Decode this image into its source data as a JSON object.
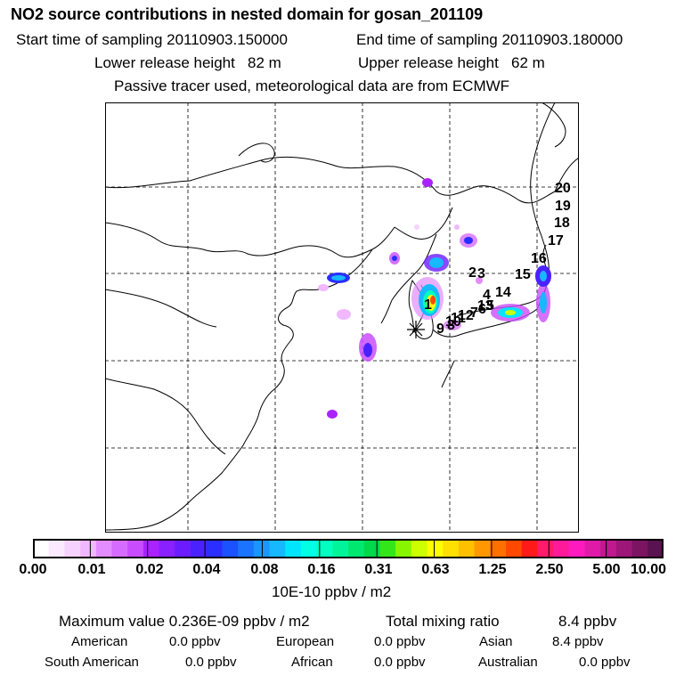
{
  "header": {
    "title": "NO2 source contributions in nested domain for gosan_201109",
    "start_label": "Start time of sampling 20110903.150000",
    "end_label": "End time of sampling 20110903.180000",
    "lower_label": "Lower release height   82 m",
    "upper_label": "Upper release height   62 m",
    "tracer_label": "Passive tracer used, meteorological data are from ECMWF"
  },
  "colors": {
    "scale": [
      "#ffffff",
      "#fbe9ff",
      "#f6d3ff",
      "#f0b8ff",
      "#e38cff",
      "#d66cff",
      "#c94dff",
      "#aa22ff",
      "#8820ff",
      "#6a1cff",
      "#4a22ff",
      "#2a2eff",
      "#1a52ff",
      "#1a74ff",
      "#1a96ff",
      "#16b8ff",
      "#00e5ff",
      "#00ffe5",
      "#00ffc0",
      "#00f59a",
      "#00e870",
      "#00d94a",
      "#33e61a",
      "#88f500",
      "#ccff00",
      "#ffff00",
      "#ffe000",
      "#ffc000",
      "#ff9800",
      "#ff7000",
      "#ff4800",
      "#ff1a1a",
      "#ff1a6a",
      "#ff1a9a",
      "#ff1ac0",
      "#e01aa8",
      "#c0188e",
      "#9e1678",
      "#7c1462",
      "#5a1250"
    ]
  },
  "scale": {
    "ticks": [
      "0.00",
      "0.01",
      "0.02",
      "0.04",
      "0.08",
      "0.16",
      "0.31",
      "0.63",
      "1.25",
      "2.50",
      "5.00",
      "10.00"
    ],
    "units": "10E-10 ppbv / m2"
  },
  "map": {
    "labels": [
      "1",
      "2",
      "3",
      "4",
      "5",
      "6",
      "7",
      "8",
      "9",
      "10",
      "11",
      "12",
      "13",
      "14",
      "15",
      "16",
      "17",
      "18",
      "19",
      "20"
    ]
  },
  "summary": {
    "maximum_label": "Maximum value  0.236E-09 ppbv / m2",
    "total_label": "Total mixing ratio",
    "total_value": "8.4 ppbv",
    "american_label": "American",
    "american_value": "0.0 ppbv",
    "european_label": "European",
    "european_value": "0.0 ppbv",
    "asian_label": "Asian",
    "asian_value": "8.4 ppbv",
    "south_american_label": "South American",
    "south_american_value": "0.0 ppbv",
    "african_label": "African",
    "african_value": "0.0 ppbv",
    "australian_label": "Australian",
    "australian_value": "0.0 ppbv"
  }
}
